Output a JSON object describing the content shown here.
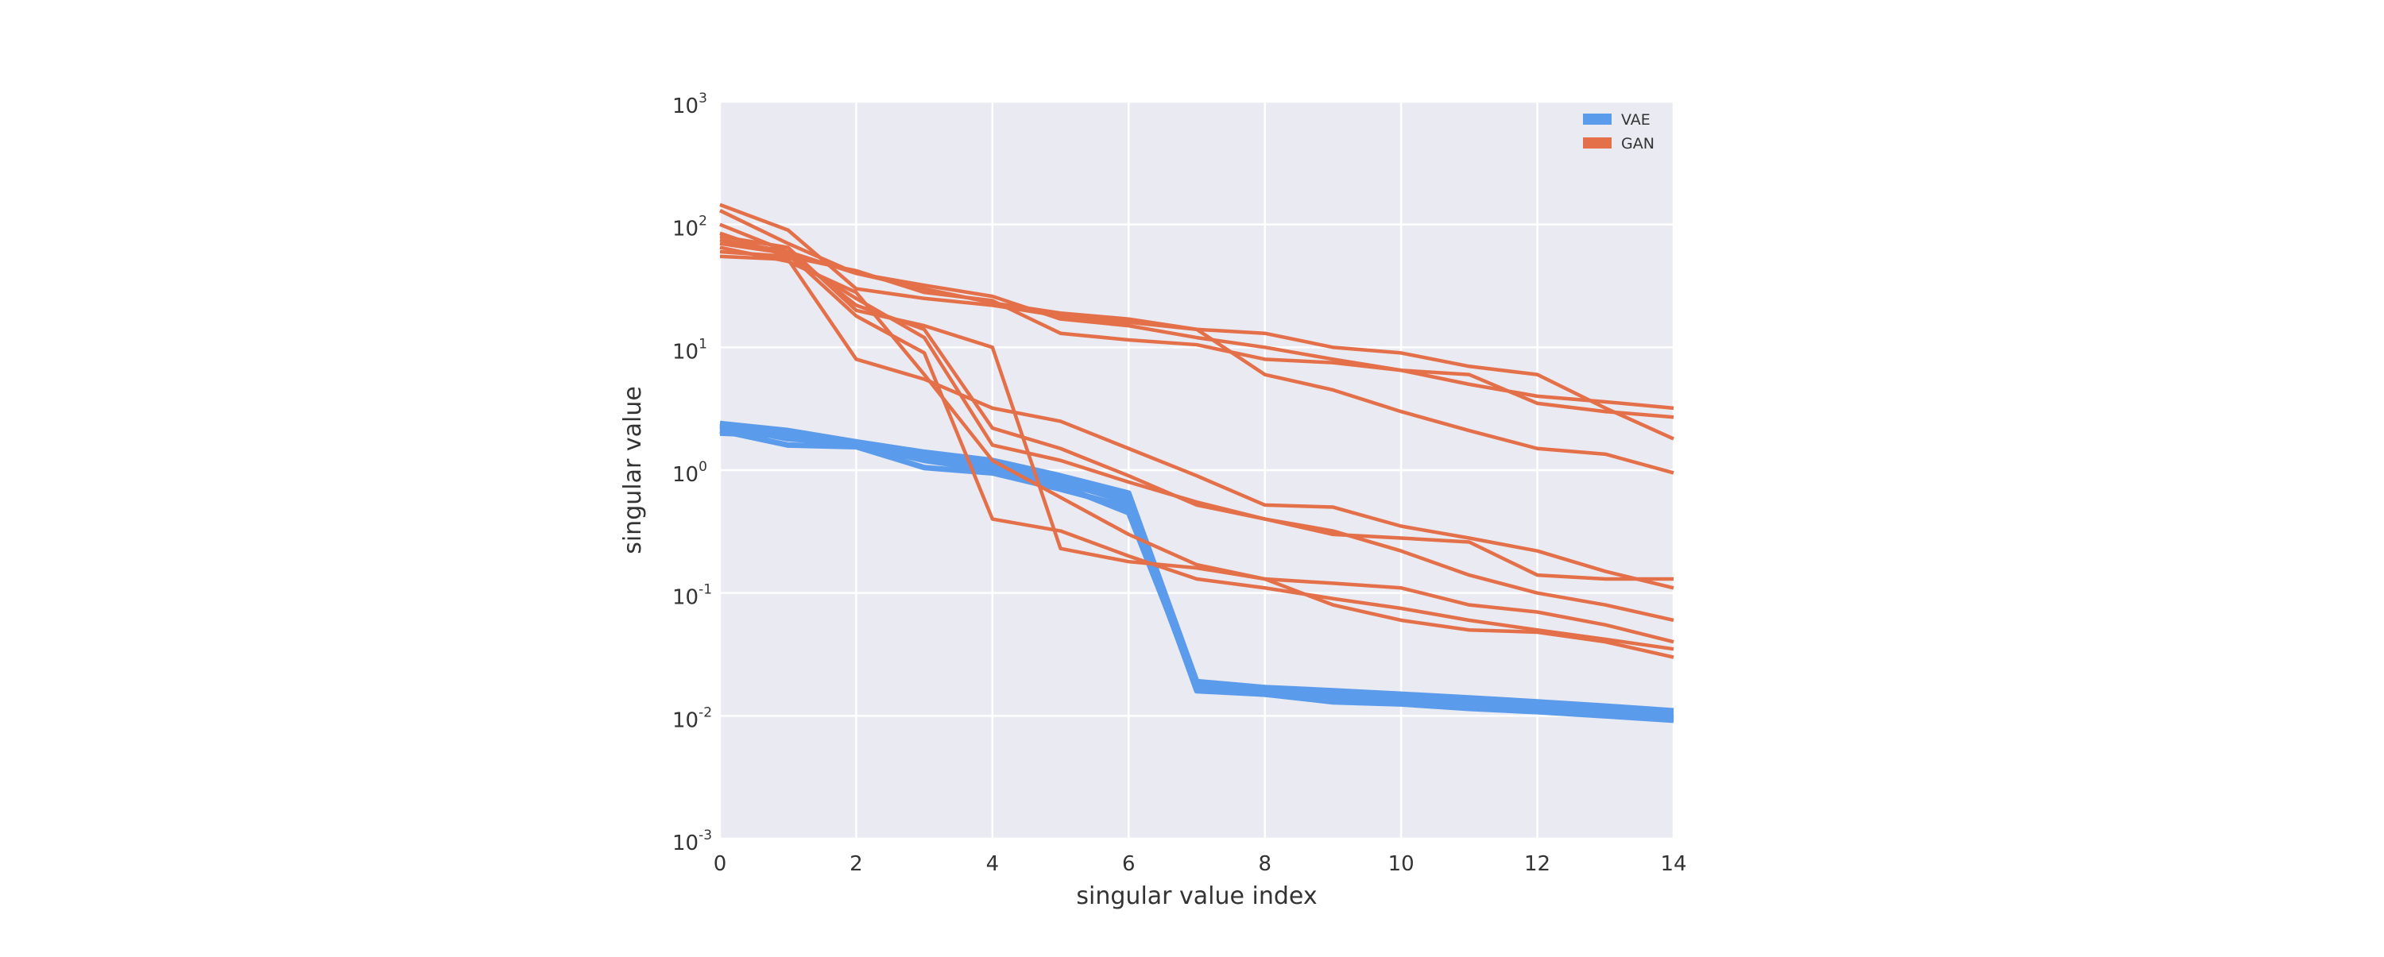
{
  "chart_data": {
    "type": "line",
    "title": "",
    "xlabel": "singular value index",
    "ylabel": "singular value",
    "yscale": "log",
    "xlim": [
      0,
      14
    ],
    "ylim": [
      0.001,
      1000
    ],
    "xticks": [
      0,
      2,
      4,
      6,
      8,
      10,
      12,
      14
    ],
    "xtick_labels": [
      "0",
      "2",
      "4",
      "6",
      "8",
      "10",
      "12",
      "14"
    ],
    "yticks": [
      {
        "value": 0.001,
        "base": "10",
        "exp": "-3"
      },
      {
        "value": 0.01,
        "base": "10",
        "exp": "-2"
      },
      {
        "value": 0.1,
        "base": "10",
        "exp": "-1"
      },
      {
        "value": 1,
        "base": "10",
        "exp": "0"
      },
      {
        "value": 10,
        "base": "10",
        "exp": "1"
      },
      {
        "value": 100,
        "base": "10",
        "exp": "2"
      },
      {
        "value": 1000,
        "base": "10",
        "exp": "3"
      }
    ],
    "grid": true,
    "legend": {
      "placement": "top-right",
      "entries": [
        {
          "label": "VAE",
          "color": "#5b9bec"
        },
        {
          "label": "GAN",
          "color": "#e4704a"
        }
      ]
    },
    "x": [
      0,
      1,
      2,
      3,
      4,
      5,
      6,
      7,
      8,
      9,
      10,
      11,
      12,
      13,
      14
    ],
    "groups": [
      {
        "name": "VAE",
        "color": "#5b9bec",
        "series": [
          [
            2.4,
            2.1,
            1.7,
            1.4,
            1.2,
            0.9,
            0.65,
            0.019,
            0.017,
            0.016,
            0.015,
            0.014,
            0.013,
            0.012,
            0.011
          ],
          [
            2.2,
            2.0,
            1.6,
            1.3,
            1.1,
            0.85,
            0.6,
            0.017,
            0.016,
            0.015,
            0.014,
            0.013,
            0.012,
            0.011,
            0.0105
          ],
          [
            2.0,
            1.9,
            1.6,
            1.2,
            1.0,
            0.8,
            0.55,
            0.016,
            0.015,
            0.014,
            0.013,
            0.012,
            0.011,
            0.0105,
            0.0095
          ],
          [
            2.1,
            1.6,
            1.55,
            1.05,
            0.95,
            0.7,
            0.5,
            0.0165,
            0.015,
            0.013,
            0.0125,
            0.0115,
            0.0108,
            0.01,
            0.0092
          ],
          [
            2.3,
            1.8,
            1.65,
            1.35,
            1.15,
            0.75,
            0.45,
            0.018,
            0.0155,
            0.0145,
            0.0135,
            0.012,
            0.0112,
            0.0102,
            0.0098
          ]
        ]
      },
      {
        "name": "GAN",
        "color": "#e4704a",
        "series": [
          [
            145,
            90,
            30,
            25,
            22,
            18,
            16,
            14,
            13,
            10,
            9,
            7,
            6,
            3.2,
            1.8
          ],
          [
            130,
            70,
            40,
            30,
            23,
            19,
            17,
            14,
            6,
            4.5,
            3,
            2.1,
            1.5,
            1.35,
            0.95
          ],
          [
            100,
            60,
            40,
            32,
            26,
            17,
            15,
            12,
            10,
            8,
            6.5,
            6,
            3.5,
            3,
            2.7
          ],
          [
            85,
            55,
            42,
            28,
            24,
            13,
            11.5,
            10.5,
            8,
            7.5,
            6.5,
            5,
            4,
            3.6,
            3.2
          ],
          [
            80,
            65,
            20,
            15,
            10,
            0.23,
            0.18,
            0.16,
            0.13,
            0.12,
            0.11,
            0.08,
            0.07,
            0.055,
            0.04
          ],
          [
            75,
            60,
            22,
            14,
            2.2,
            1.5,
            0.9,
            0.52,
            0.4,
            0.3,
            0.28,
            0.26,
            0.14,
            0.13,
            0.13
          ],
          [
            60,
            55,
            25,
            12,
            1.6,
            1.2,
            0.8,
            0.55,
            0.4,
            0.32,
            0.22,
            0.14,
            0.1,
            0.08,
            0.06
          ],
          [
            55,
            52,
            8,
            5.5,
            3.2,
            2.5,
            1.5,
            0.9,
            0.52,
            0.5,
            0.35,
            0.28,
            0.22,
            0.15,
            0.11
          ],
          [
            70,
            58,
            18,
            9,
            0.4,
            0.32,
            0.2,
            0.13,
            0.11,
            0.09,
            0.075,
            0.06,
            0.05,
            0.042,
            0.035
          ],
          [
            65,
            50,
            28,
            6,
            1.2,
            0.6,
            0.3,
            0.17,
            0.13,
            0.08,
            0.06,
            0.05,
            0.048,
            0.04,
            0.03
          ]
        ]
      }
    ]
  }
}
